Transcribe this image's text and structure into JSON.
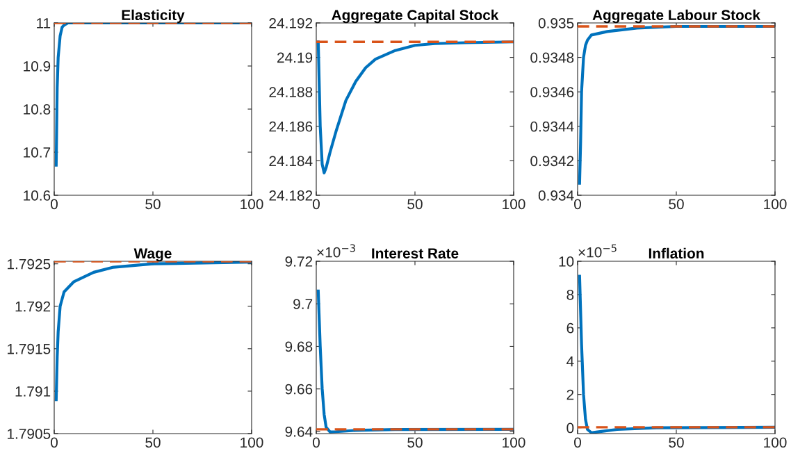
{
  "chart_data": [
    {
      "type": "line",
      "title": "Elasticity",
      "x": [
        1,
        1.5,
        2,
        3,
        4,
        5,
        7,
        10,
        100
      ],
      "xlim": [
        0,
        100
      ],
      "xticks": [
        0,
        50,
        100
      ],
      "ylim": [
        10.6,
        11
      ],
      "yticks": [
        10.6,
        10.7,
        10.8,
        10.9,
        11
      ],
      "series": [
        {
          "color": "#0072bd",
          "values": [
            10.67,
            10.85,
            10.92,
            10.97,
            10.99,
            10.995,
            11,
            11,
            11
          ]
        }
      ],
      "ref_lines": [
        {
          "axis": "y",
          "value": 11,
          "color": "#d95319",
          "line_style": "dashed"
        }
      ],
      "grid": false,
      "marker": "none",
      "line_style": "solid"
    },
    {
      "type": "line",
      "title": "Aggregate Capital Stock",
      "x": [
        1,
        2,
        3,
        4,
        5,
        7,
        10,
        15,
        20,
        25,
        30,
        40,
        50,
        60,
        75,
        100
      ],
      "xlim": [
        0,
        100
      ],
      "xticks": [
        0,
        50,
        100
      ],
      "ylim": [
        24.182,
        24.192
      ],
      "yticks": [
        24.182,
        24.184,
        24.186,
        24.188,
        24.19,
        24.192
      ],
      "series": [
        {
          "color": "#0072bd",
          "values": [
            24.1909,
            24.186,
            24.1838,
            24.1833,
            24.1836,
            24.1845,
            24.1857,
            24.1875,
            24.1886,
            24.1894,
            24.1899,
            24.1904,
            24.1907,
            24.1908,
            24.19085,
            24.1909
          ]
        }
      ],
      "ref_lines": [
        {
          "axis": "y",
          "value": 24.1909,
          "color": "#d95319",
          "line_style": "dashed"
        }
      ],
      "grid": false,
      "marker": "none",
      "line_style": "solid"
    },
    {
      "type": "line",
      "title": "Aggregate Labour Stock",
      "x": [
        1,
        1.5,
        2,
        3,
        4,
        5,
        7,
        15,
        30,
        50,
        100
      ],
      "xlim": [
        0,
        100
      ],
      "xticks": [
        0,
        50,
        100
      ],
      "ylim": [
        0.934,
        0.935
      ],
      "yticks": [
        0.934,
        0.9342,
        0.9344,
        0.9346,
        0.9348,
        0.935
      ],
      "series": [
        {
          "color": "#0072bd",
          "values": [
            0.93407,
            0.9343,
            0.9346,
            0.9348,
            0.93487,
            0.9349,
            0.93493,
            0.93495,
            0.93497,
            0.93498,
            0.93498
          ]
        }
      ],
      "ref_lines": [
        {
          "axis": "y",
          "value": 0.93498,
          "color": "#d95319",
          "line_style": "dashed"
        }
      ],
      "grid": false,
      "marker": "none",
      "line_style": "solid"
    },
    {
      "type": "line",
      "title": "Wage",
      "x": [
        1,
        1.5,
        2,
        3,
        5,
        10,
        20,
        30,
        50,
        100
      ],
      "xlim": [
        0,
        100
      ],
      "xticks": [
        0,
        50,
        100
      ],
      "ylim": [
        1.7905,
        1.79253
      ],
      "yticks": [
        1.7905,
        1.791,
        1.7915,
        1.792,
        1.7925
      ],
      "series": [
        {
          "color": "#0072bd",
          "values": [
            1.7909,
            1.7914,
            1.7917,
            1.792,
            1.79217,
            1.79229,
            1.7924,
            1.79246,
            1.7925,
            1.79252
          ]
        }
      ],
      "ref_lines": [
        {
          "axis": "y",
          "value": 1.79253,
          "color": "#d95319",
          "line_style": "dashed"
        }
      ],
      "grid": false,
      "marker": "none",
      "line_style": "solid"
    },
    {
      "type": "line",
      "title": "Interest Rate",
      "annotations": [
        "×10$^{−3}$"
      ],
      "x": [
        1,
        2,
        3,
        4,
        5,
        7,
        10,
        20,
        40,
        100
      ],
      "xlim": [
        0,
        100
      ],
      "xticks": [
        0,
        50,
        100
      ],
      "ylim": [
        9.639,
        9.72
      ],
      "yticks": [
        9.64,
        9.66,
        9.68,
        9.7,
        9.72
      ],
      "series": [
        {
          "color": "#0072bd",
          "values": [
            9.706,
            9.68,
            9.66,
            9.648,
            9.642,
            9.6398,
            9.6399,
            9.6405,
            9.6409,
            9.641
          ]
        }
      ],
      "ref_lines": [
        {
          "axis": "y",
          "value": 9.641,
          "color": "#d95319",
          "line_style": "dashed"
        }
      ],
      "grid": false,
      "marker": "none",
      "line_style": "solid"
    },
    {
      "type": "line",
      "title": "Inflation",
      "annotations": [
        "×10$^{−5}$"
      ],
      "x": [
        1,
        2,
        3,
        4,
        5,
        7,
        10,
        20,
        40,
        100
      ],
      "xlim": [
        0,
        100
      ],
      "xticks": [
        0,
        50,
        100
      ],
      "ylim": [
        -0.35,
        10
      ],
      "yticks": [
        0,
        2,
        4,
        6,
        8,
        10
      ],
      "series": [
        {
          "color": "#0072bd",
          "values": [
            9.1,
            5,
            2,
            0.5,
            -0.1,
            -0.3,
            -0.25,
            -0.1,
            0,
            0.03
          ]
        }
      ],
      "ref_lines": [
        {
          "axis": "y",
          "value": 0.03,
          "color": "#d95319",
          "line_style": "dashed"
        }
      ],
      "grid": false,
      "marker": "none",
      "line_style": "solid"
    }
  ]
}
